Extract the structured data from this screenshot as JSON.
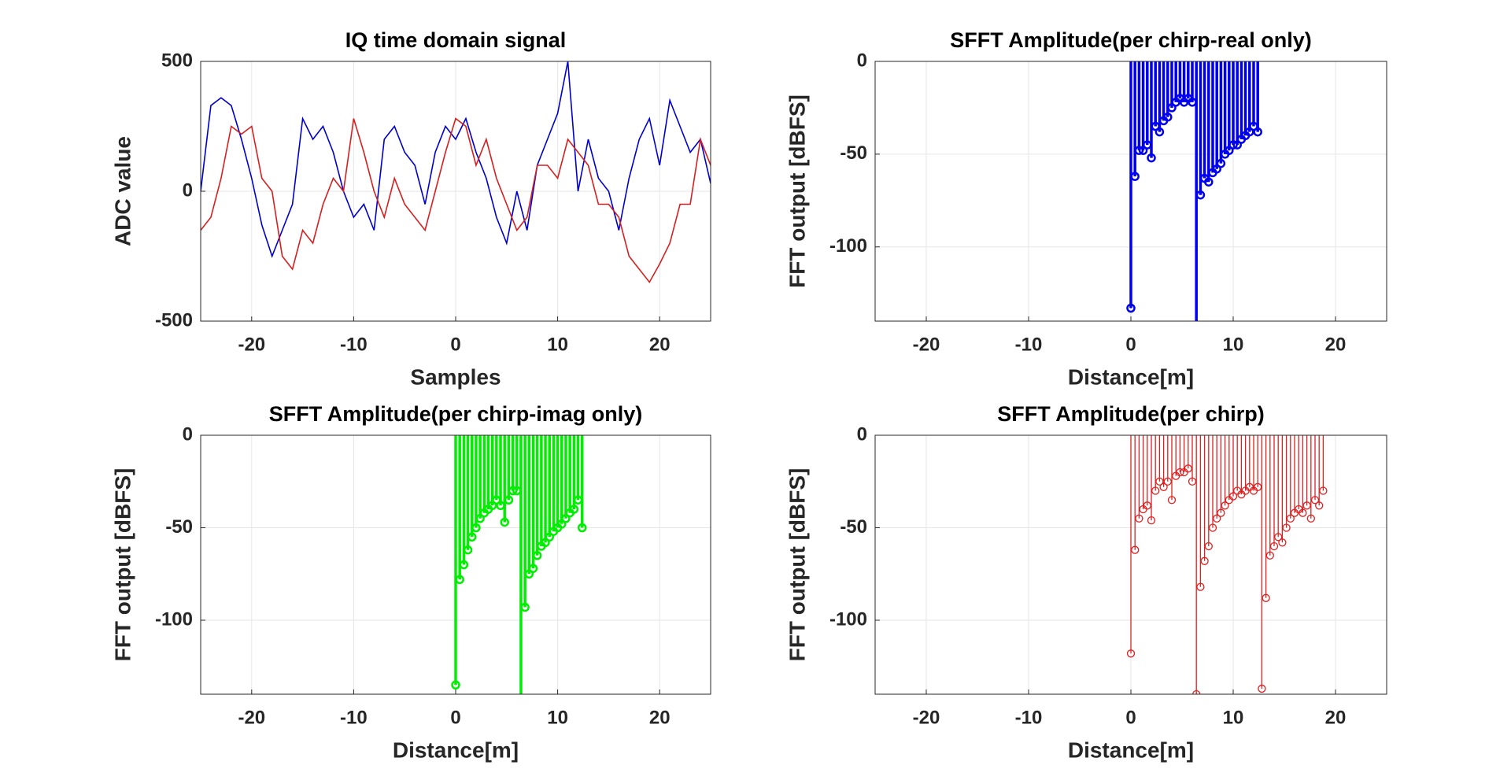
{
  "chart_data": [
    {
      "type": "line",
      "title": "IQ time domain signal",
      "xlabel": "Samples",
      "ylabel": "ADC value",
      "xlim": [
        -25,
        25
      ],
      "ylim": [
        -500,
        500
      ],
      "xticks": [
        -20,
        -10,
        0,
        10,
        20
      ],
      "yticks": [
        -500,
        0,
        500
      ],
      "grid": true,
      "x": [
        -25,
        -24,
        -23,
        -22,
        -21,
        -20,
        -19,
        -18,
        -17,
        -16,
        -15,
        -14,
        -13,
        -12,
        -11,
        -10,
        -9,
        -8,
        -7,
        -6,
        -5,
        -4,
        -3,
        -2,
        -1,
        0,
        1,
        2,
        3,
        4,
        5,
        6,
        7,
        8,
        9,
        10,
        11,
        12,
        13,
        14,
        15,
        16,
        17,
        18,
        19,
        20,
        21,
        22,
        23,
        24,
        25
      ],
      "series": [
        {
          "color": "#0000cc",
          "values": [
            0,
            330,
            360,
            330,
            200,
            50,
            -130,
            -250,
            -150,
            -50,
            280,
            200,
            250,
            150,
            0,
            -100,
            -50,
            -150,
            200,
            250,
            150,
            100,
            -50,
            150,
            250,
            200,
            280,
            150,
            50,
            -100,
            -200,
            0,
            -150,
            100,
            200,
            300,
            500,
            0,
            200,
            50,
            0,
            -150,
            50,
            200,
            280,
            100,
            350,
            250,
            150,
            200,
            30
          ]
        },
        {
          "color": "#d42020",
          "values": [
            -150,
            -100,
            50,
            250,
            220,
            250,
            50,
            0,
            -250,
            -300,
            -150,
            -200,
            -50,
            50,
            0,
            280,
            150,
            0,
            -100,
            50,
            -50,
            -100,
            -150,
            0,
            150,
            280,
            250,
            100,
            200,
            50,
            -50,
            -150,
            -100,
            100,
            100,
            50,
            200,
            150,
            100,
            -50,
            -50,
            -100,
            -250,
            -300,
            -350,
            -280,
            -200,
            -50,
            -50,
            200,
            100
          ]
        }
      ]
    },
    {
      "type": "stem",
      "title": "SFFT Amplitude(per chirp-real only)",
      "xlabel": "Distance[m]",
      "ylabel": "FFT output [dBFS]",
      "xlim": [
        -25,
        25
      ],
      "ylim": [
        -140,
        0
      ],
      "xticks": [
        -20,
        -10,
        0,
        10,
        20
      ],
      "yticks": [
        -100,
        -50,
        0
      ],
      "grid": true,
      "color": "#0000ee",
      "x": [
        0,
        0.4,
        0.8,
        1.2,
        1.6,
        2.0,
        2.4,
        2.8,
        3.2,
        3.6,
        4.0,
        4.4,
        4.8,
        5.2,
        5.6,
        6.0,
        6.4,
        6.8,
        7.2,
        7.6,
        8.0,
        8.4,
        8.8,
        9.2,
        9.6,
        10.0,
        10.4,
        10.8,
        11.2,
        11.6,
        12.0,
        12.4
      ],
      "values": [
        -133,
        -62,
        -48,
        -48,
        -45,
        -52,
        -35,
        -38,
        -32,
        -30,
        -25,
        -22,
        -20,
        -22,
        -20,
        -22,
        -145,
        -72,
        -63,
        -65,
        -60,
        -58,
        -55,
        -50,
        -48,
        -45,
        -45,
        -42,
        -40,
        -38,
        -35,
        -38
      ]
    },
    {
      "type": "stem",
      "title": "SFFT Amplitude(per chirp-imag only)",
      "xlabel": "Distance[m]",
      "ylabel": "FFT output [dBFS]",
      "xlim": [
        -25,
        25
      ],
      "ylim": [
        -140,
        0
      ],
      "xticks": [
        -20,
        -10,
        0,
        10,
        20
      ],
      "yticks": [
        -100,
        -50,
        0
      ],
      "grid": true,
      "color": "#00ee00",
      "x": [
        0,
        0.4,
        0.8,
        1.2,
        1.6,
        2.0,
        2.4,
        2.8,
        3.2,
        3.6,
        4.0,
        4.4,
        4.8,
        5.2,
        5.6,
        6.0,
        6.4,
        6.8,
        7.2,
        7.6,
        8.0,
        8.4,
        8.8,
        9.2,
        9.6,
        10.0,
        10.4,
        10.8,
        11.2,
        11.6,
        12.0,
        12.4
      ],
      "values": [
        -135,
        -78,
        -70,
        -62,
        -55,
        -50,
        -45,
        -42,
        -40,
        -38,
        -35,
        -38,
        -47,
        -35,
        -30,
        -30,
        -145,
        -93,
        -75,
        -72,
        -65,
        -60,
        -58,
        -55,
        -52,
        -50,
        -48,
        -45,
        -42,
        -40,
        -35,
        -50
      ]
    },
    {
      "type": "stem",
      "title": "SFFT Amplitude(per chirp)",
      "xlabel": "Distance[m]",
      "ylabel": "FFT output [dBFS]",
      "xlim": [
        -25,
        25
      ],
      "ylim": [
        -140,
        0
      ],
      "xticks": [
        -20,
        -10,
        0,
        10,
        20
      ],
      "yticks": [
        -100,
        -50,
        0
      ],
      "grid": true,
      "color": "#e02020",
      "x": [
        0,
        0.4,
        0.8,
        1.2,
        1.6,
        2.0,
        2.4,
        2.8,
        3.2,
        3.6,
        4.0,
        4.4,
        4.8,
        5.2,
        5.6,
        6.0,
        6.4,
        6.8,
        7.2,
        7.6,
        8.0,
        8.4,
        8.8,
        9.2,
        9.6,
        10.0,
        10.4,
        10.8,
        11.2,
        11.6,
        12.0,
        12.4,
        12.8,
        13.2,
        13.6,
        14.0,
        14.4,
        14.8,
        15.2,
        15.6,
        16.0,
        16.4,
        16.8,
        17.2,
        17.6,
        18.0,
        18.4,
        18.8
      ],
      "values": [
        -118,
        -62,
        -45,
        -40,
        -38,
        -46,
        -30,
        -25,
        -28,
        -25,
        -35,
        -22,
        -20,
        -20,
        -18,
        -25,
        -140,
        -82,
        -68,
        -60,
        -50,
        -45,
        -42,
        -38,
        -35,
        -33,
        -30,
        -32,
        -30,
        -28,
        -30,
        -28,
        -137,
        -88,
        -65,
        -60,
        -55,
        -58,
        -50,
        -45,
        -42,
        -40,
        -42,
        -38,
        -45,
        -35,
        -38,
        -30
      ]
    }
  ]
}
